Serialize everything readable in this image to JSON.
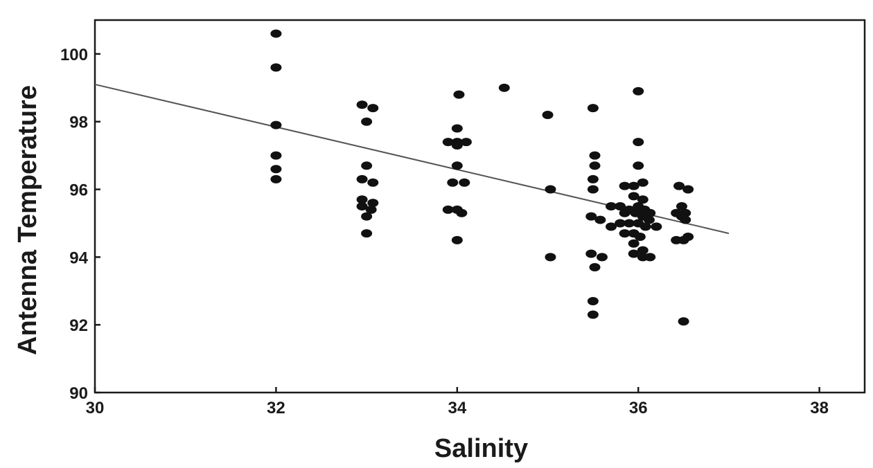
{
  "chart_data": {
    "type": "scatter",
    "xlabel": "Salinity",
    "ylabel": "Antenna Temperature",
    "xlim": [
      30,
      38.5
    ],
    "ylim": [
      90,
      101
    ],
    "xticks": [
      30,
      32,
      34,
      36,
      38
    ],
    "yticks": [
      90,
      92,
      94,
      96,
      98,
      100
    ],
    "grid": false,
    "points": [
      {
        "x": 32.0,
        "y": 100.6
      },
      {
        "x": 32.0,
        "y": 99.6
      },
      {
        "x": 32.0,
        "y": 97.9
      },
      {
        "x": 32.0,
        "y": 97.0
      },
      {
        "x": 32.0,
        "y": 96.6
      },
      {
        "x": 32.0,
        "y": 96.3
      },
      {
        "x": 32.95,
        "y": 98.5
      },
      {
        "x": 33.07,
        "y": 98.4
      },
      {
        "x": 33.0,
        "y": 98.0
      },
      {
        "x": 33.0,
        "y": 96.7
      },
      {
        "x": 32.95,
        "y": 96.3
      },
      {
        "x": 33.07,
        "y": 96.2
      },
      {
        "x": 32.95,
        "y": 95.7
      },
      {
        "x": 33.07,
        "y": 95.6
      },
      {
        "x": 32.95,
        "y": 95.5
      },
      {
        "x": 33.05,
        "y": 95.4
      },
      {
        "x": 33.0,
        "y": 95.2
      },
      {
        "x": 33.0,
        "y": 94.7
      },
      {
        "x": 34.02,
        "y": 98.8
      },
      {
        "x": 34.0,
        "y": 97.8
      },
      {
        "x": 33.9,
        "y": 97.4
      },
      {
        "x": 34.0,
        "y": 97.4
      },
      {
        "x": 34.1,
        "y": 97.4
      },
      {
        "x": 34.0,
        "y": 97.3
      },
      {
        "x": 34.0,
        "y": 96.7
      },
      {
        "x": 33.95,
        "y": 96.2
      },
      {
        "x": 34.08,
        "y": 96.2
      },
      {
        "x": 33.9,
        "y": 95.4
      },
      {
        "x": 34.0,
        "y": 95.4
      },
      {
        "x": 34.05,
        "y": 95.3
      },
      {
        "x": 34.0,
        "y": 94.5
      },
      {
        "x": 34.52,
        "y": 99.0
      },
      {
        "x": 35.0,
        "y": 98.2
      },
      {
        "x": 35.03,
        "y": 96.0
      },
      {
        "x": 35.03,
        "y": 94.0
      },
      {
        "x": 35.5,
        "y": 98.4
      },
      {
        "x": 35.52,
        "y": 97.0
      },
      {
        "x": 35.52,
        "y": 96.7
      },
      {
        "x": 35.5,
        "y": 96.3
      },
      {
        "x": 35.5,
        "y": 96.0
      },
      {
        "x": 35.48,
        "y": 95.2
      },
      {
        "x": 35.58,
        "y": 95.1
      },
      {
        "x": 35.48,
        "y": 94.1
      },
      {
        "x": 35.6,
        "y": 94.0
      },
      {
        "x": 35.52,
        "y": 93.7
      },
      {
        "x": 35.5,
        "y": 92.7
      },
      {
        "x": 35.5,
        "y": 92.3
      },
      {
        "x": 36.0,
        "y": 98.9
      },
      {
        "x": 36.0,
        "y": 97.4
      },
      {
        "x": 36.0,
        "y": 96.7
      },
      {
        "x": 35.85,
        "y": 96.1
      },
      {
        "x": 35.95,
        "y": 96.1
      },
      {
        "x": 36.05,
        "y": 96.2
      },
      {
        "x": 35.95,
        "y": 95.8
      },
      {
        "x": 36.05,
        "y": 95.7
      },
      {
        "x": 35.7,
        "y": 95.5
      },
      {
        "x": 35.8,
        "y": 95.5
      },
      {
        "x": 35.9,
        "y": 95.4
      },
      {
        "x": 36.0,
        "y": 95.5
      },
      {
        "x": 36.07,
        "y": 95.4
      },
      {
        "x": 36.13,
        "y": 95.3
      },
      {
        "x": 35.85,
        "y": 95.3
      },
      {
        "x": 35.97,
        "y": 95.3
      },
      {
        "x": 36.05,
        "y": 95.2
      },
      {
        "x": 36.12,
        "y": 95.1
      },
      {
        "x": 35.8,
        "y": 95.0
      },
      {
        "x": 35.9,
        "y": 95.0
      },
      {
        "x": 36.0,
        "y": 95.0
      },
      {
        "x": 36.08,
        "y": 94.9
      },
      {
        "x": 35.7,
        "y": 94.9
      },
      {
        "x": 36.2,
        "y": 94.9
      },
      {
        "x": 35.85,
        "y": 94.7
      },
      {
        "x": 35.95,
        "y": 94.7
      },
      {
        "x": 36.02,
        "y": 94.6
      },
      {
        "x": 35.95,
        "y": 94.4
      },
      {
        "x": 36.05,
        "y": 94.2
      },
      {
        "x": 35.95,
        "y": 94.1
      },
      {
        "x": 36.05,
        "y": 94.0
      },
      {
        "x": 36.13,
        "y": 94.0
      },
      {
        "x": 36.45,
        "y": 96.1
      },
      {
        "x": 36.55,
        "y": 96.0
      },
      {
        "x": 36.48,
        "y": 95.5
      },
      {
        "x": 36.42,
        "y": 95.3
      },
      {
        "x": 36.52,
        "y": 95.3
      },
      {
        "x": 36.48,
        "y": 95.2
      },
      {
        "x": 36.52,
        "y": 95.1
      },
      {
        "x": 36.42,
        "y": 94.5
      },
      {
        "x": 36.5,
        "y": 94.5
      },
      {
        "x": 36.55,
        "y": 94.6
      },
      {
        "x": 36.5,
        "y": 92.1
      }
    ],
    "trend_line": {
      "x": [
        30,
        37
      ],
      "y": [
        99.1,
        94.7
      ]
    }
  }
}
